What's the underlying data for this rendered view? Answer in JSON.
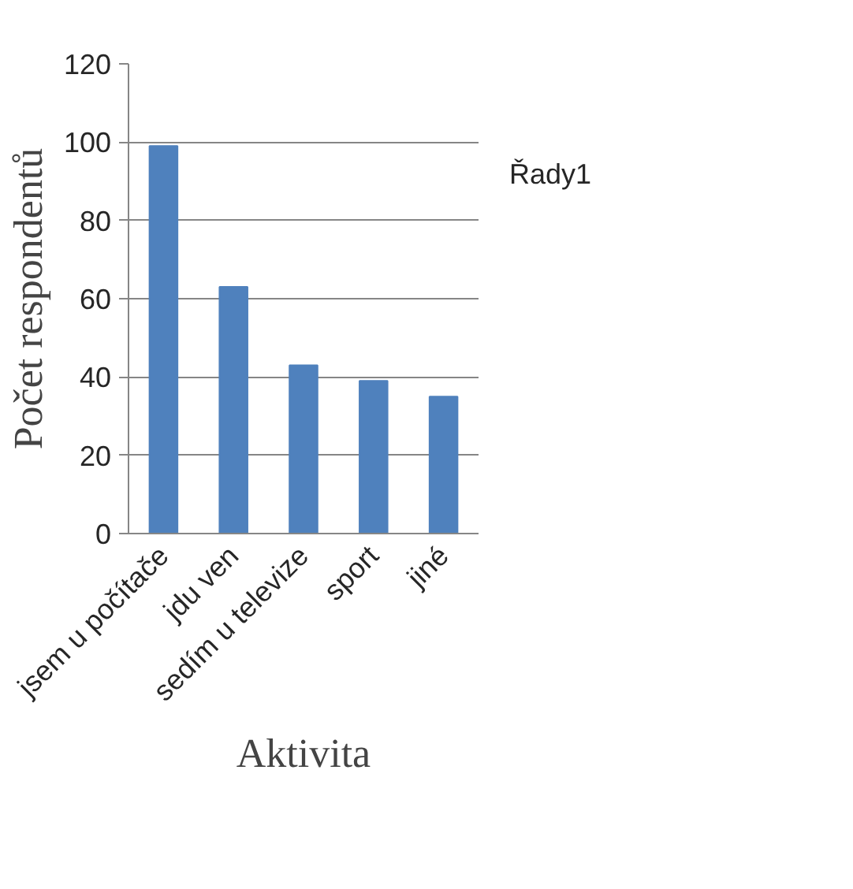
{
  "chart_data": {
    "type": "bar",
    "xlabel": "Aktivita",
    "ylabel": "Počet respondentů",
    "categories": [
      "jsem u počítače",
      "jdu ven",
      "sedím u televize",
      "sport",
      "jiné"
    ],
    "series": [
      {
        "name": "Řady1",
        "color": "#4f81bd",
        "values": [
          99,
          63,
          43,
          39,
          35
        ]
      }
    ],
    "ylim": [
      0,
      120
    ],
    "yticks": [
      0,
      20,
      40,
      60,
      80,
      100,
      120
    ],
    "grid": "y",
    "legend": "right"
  }
}
